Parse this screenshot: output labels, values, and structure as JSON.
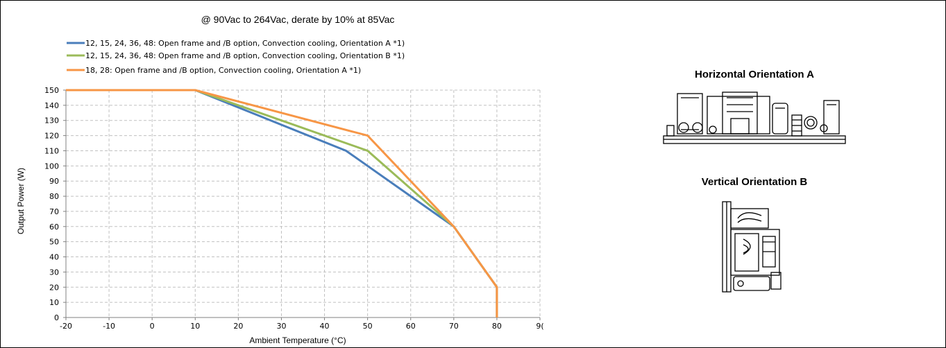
{
  "chart_data": {
    "type": "line",
    "title": "@ 90Vac to 264Vac, derate by 10% at 85Vac",
    "xlabel": "Ambient Temperature  (°C)",
    "ylabel": "Output Power  (W)",
    "xlim": [
      -20,
      90
    ],
    "ylim": [
      0,
      150
    ],
    "x_ticks": [
      "-20",
      "-10",
      "0",
      "10",
      "20",
      "30",
      "40",
      "50",
      "60",
      "70",
      "80",
      "9("
    ],
    "y_ticks": [
      "0",
      "10",
      "20",
      "30",
      "40",
      "50",
      "60",
      "70",
      "80",
      "90",
      "100",
      "110",
      "120",
      "130",
      "140",
      "150"
    ],
    "grid": true,
    "legend_position": "top-left",
    "series": [
      {
        "name": "12, 15, 24, 36, 48: Open frame and /B option, Convection cooling, Orientation A *1)",
        "color": "#4a7ebb",
        "x": [
          -20,
          10,
          45,
          50,
          70,
          80,
          80
        ],
        "y": [
          150,
          150,
          110,
          100,
          60,
          20,
          0
        ]
      },
      {
        "name": "12, 15, 24, 36, 48: Open frame and /B option, Convection cooling, Orientation B *1)",
        "color": "#9bbb59",
        "x": [
          -20,
          10,
          50,
          70,
          80,
          80
        ],
        "y": [
          150,
          150,
          110,
          60,
          20,
          0
        ]
      },
      {
        "name": "18, 28: Open frame and /B option, Convection cooling, Orientation A *1)",
        "color": "#f79646",
        "x": [
          -20,
          10,
          50,
          70,
          80,
          80
        ],
        "y": [
          150,
          150,
          120,
          60,
          20,
          0
        ]
      }
    ]
  },
  "orientations": {
    "horizontal_label": "Horizontal Orientation A",
    "vertical_label": "Vertical Orientation B",
    "horizontal_icon": "psu-board-horizontal-icon",
    "vertical_icon": "psu-board-vertical-icon"
  }
}
